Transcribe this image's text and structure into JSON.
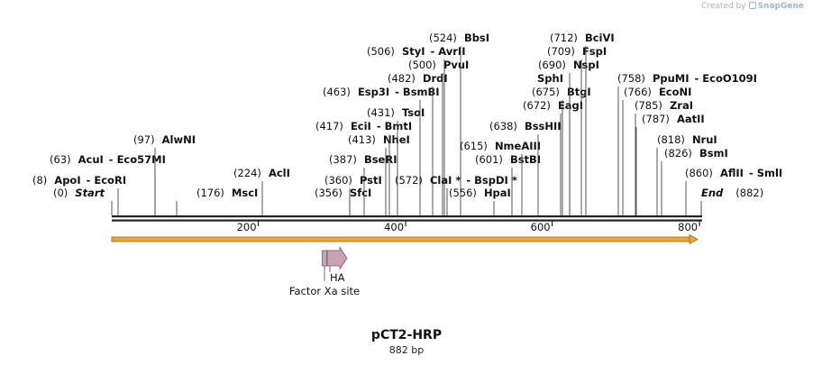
{
  "credit": {
    "prefix": "Created by",
    "brand": "SnapGene",
    "icon": "snapgene-logo-icon"
  },
  "plasmid": {
    "name": "pCT2-HRP",
    "length_label": "882 bp",
    "length_bp": 882
  },
  "axis": {
    "ticks": [
      200,
      400,
      600,
      800
    ],
    "tick_labels": [
      "200",
      "400",
      "600",
      "800"
    ]
  },
  "colors": {
    "orf_fill": "#f5a623",
    "orf_stroke": "#8a6d3b",
    "feature_fill": "#c9a3b4",
    "feature_stroke": "#7a5a6a",
    "line": "#222222"
  },
  "ends": [
    {
      "pos_label": "(0)",
      "name": "Start",
      "pos": 0
    },
    {
      "pos_label": "(882)",
      "name": "End",
      "pos": 882
    }
  ],
  "sites": [
    {
      "pos_label": "(8)",
      "name": "ApoI",
      "suffix": "- EcoRI",
      "pos": 8
    },
    {
      "pos_label": "(63)",
      "name": "AcuI",
      "suffix": "- Eco57MI",
      "pos": 63
    },
    {
      "pos_label": "(97)",
      "name": "AlwNI",
      "suffix": "",
      "pos": 97
    },
    {
      "pos_label": "(176)",
      "name": "MscI",
      "suffix": "",
      "pos": 176
    },
    {
      "pos_label": "(224)",
      "name": "AclI",
      "suffix": "",
      "pos": 224
    },
    {
      "pos_label": "(356)",
      "name": "SfcI",
      "suffix": "",
      "pos": 356
    },
    {
      "pos_label": "(360)",
      "name": "PstI",
      "suffix": "",
      "pos": 360
    },
    {
      "pos_label": "(387)",
      "name": "BseRI",
      "suffix": "",
      "pos": 387
    },
    {
      "pos_label": "(413)",
      "name": "NheI",
      "suffix": "",
      "pos": 413
    },
    {
      "pos_label": "(417)",
      "name": "EciI",
      "suffix": "- BmtI",
      "pos": 417
    },
    {
      "pos_label": "(431)",
      "name": "TsoI",
      "suffix": "",
      "pos": 431
    },
    {
      "pos_label": "(463)",
      "name": "Esp3I",
      "suffix": "- BsmBI",
      "pos": 463
    },
    {
      "pos_label": "(482)",
      "name": "DrdI",
      "suffix": "",
      "pos": 482
    },
    {
      "pos_label": "(500)",
      "name": "PvuI",
      "suffix": "",
      "pos": 500
    },
    {
      "pos_label": "(506)",
      "name": "StyI",
      "suffix": "- AvrII",
      "pos": 506
    },
    {
      "pos_label": "(524)",
      "name": "BbsI",
      "suffix": "",
      "pos": 524
    },
    {
      "pos_label": "(572)",
      "name": "ClaI *",
      "suffix": "- BspDI *",
      "pos": 572
    },
    {
      "pos_label": "(556)",
      "name": "HpaI",
      "suffix": "",
      "pos": 556
    },
    {
      "pos_label": "(601)",
      "name": "BstBI",
      "suffix": "",
      "pos": 601
    },
    {
      "pos_label": "(615)",
      "name": "NmeAIII",
      "suffix": "",
      "pos": 615
    },
    {
      "pos_label": "(638)",
      "name": "BssHII",
      "suffix": "",
      "pos": 638
    },
    {
      "pos_label": "(672)",
      "name": "EagI",
      "suffix": "",
      "pos": 672
    },
    {
      "pos_label": "(675)",
      "name": "BtgI",
      "suffix": "",
      "pos": 675
    },
    {
      "pos_label": "",
      "name": "SphI",
      "suffix": "",
      "pos": 690
    },
    {
      "pos_label": "(690)",
      "name": "NspI",
      "suffix": "",
      "pos": 690
    },
    {
      "pos_label": "(709)",
      "name": "FspI",
      "suffix": "",
      "pos": 709
    },
    {
      "pos_label": "(712)",
      "name": "BciVI",
      "suffix": "",
      "pos": 712
    },
    {
      "pos_label": "(758)",
      "name": "PpuMI",
      "suffix": "- EcoO109I",
      "pos": 758
    },
    {
      "pos_label": "(766)",
      "name": "EcoNI",
      "suffix": "",
      "pos": 766
    },
    {
      "pos_label": "(785)",
      "name": "ZraI",
      "suffix": "",
      "pos": 785
    },
    {
      "pos_label": "(787)",
      "name": "AatII",
      "suffix": "",
      "pos": 787
    },
    {
      "pos_label": "(818)",
      "name": "NruI",
      "suffix": "",
      "pos": 818
    },
    {
      "pos_label": "(826)",
      "name": "BsmI",
      "suffix": "",
      "pos": 826
    },
    {
      "pos_label": "(860)",
      "name": "AflII",
      "suffix": "- SmlI",
      "pos": 860
    }
  ],
  "orf": {
    "start_bp": 0,
    "end_bp": 882
  },
  "features": [
    {
      "name": "HA",
      "start_bp": 320,
      "end_bp": 348
    },
    {
      "name": "Factor Xa site",
      "start_bp": 320,
      "end_bp": 329
    }
  ]
}
